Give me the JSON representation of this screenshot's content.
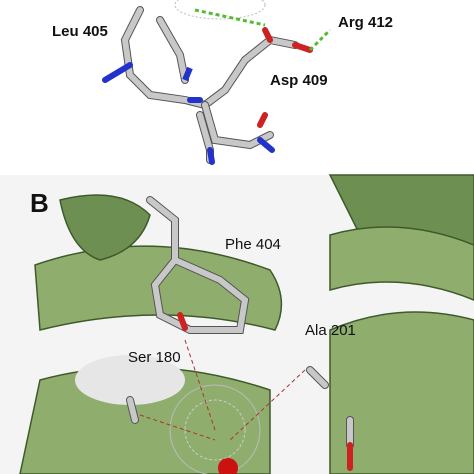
{
  "panel_a": {
    "labels": [
      "Leu 405",
      "Arg 412",
      "Asp 409"
    ]
  },
  "panel_b": {
    "letter": "B",
    "labels": [
      "Phe 404",
      "Ala 201",
      "Ser 180"
    ]
  }
}
